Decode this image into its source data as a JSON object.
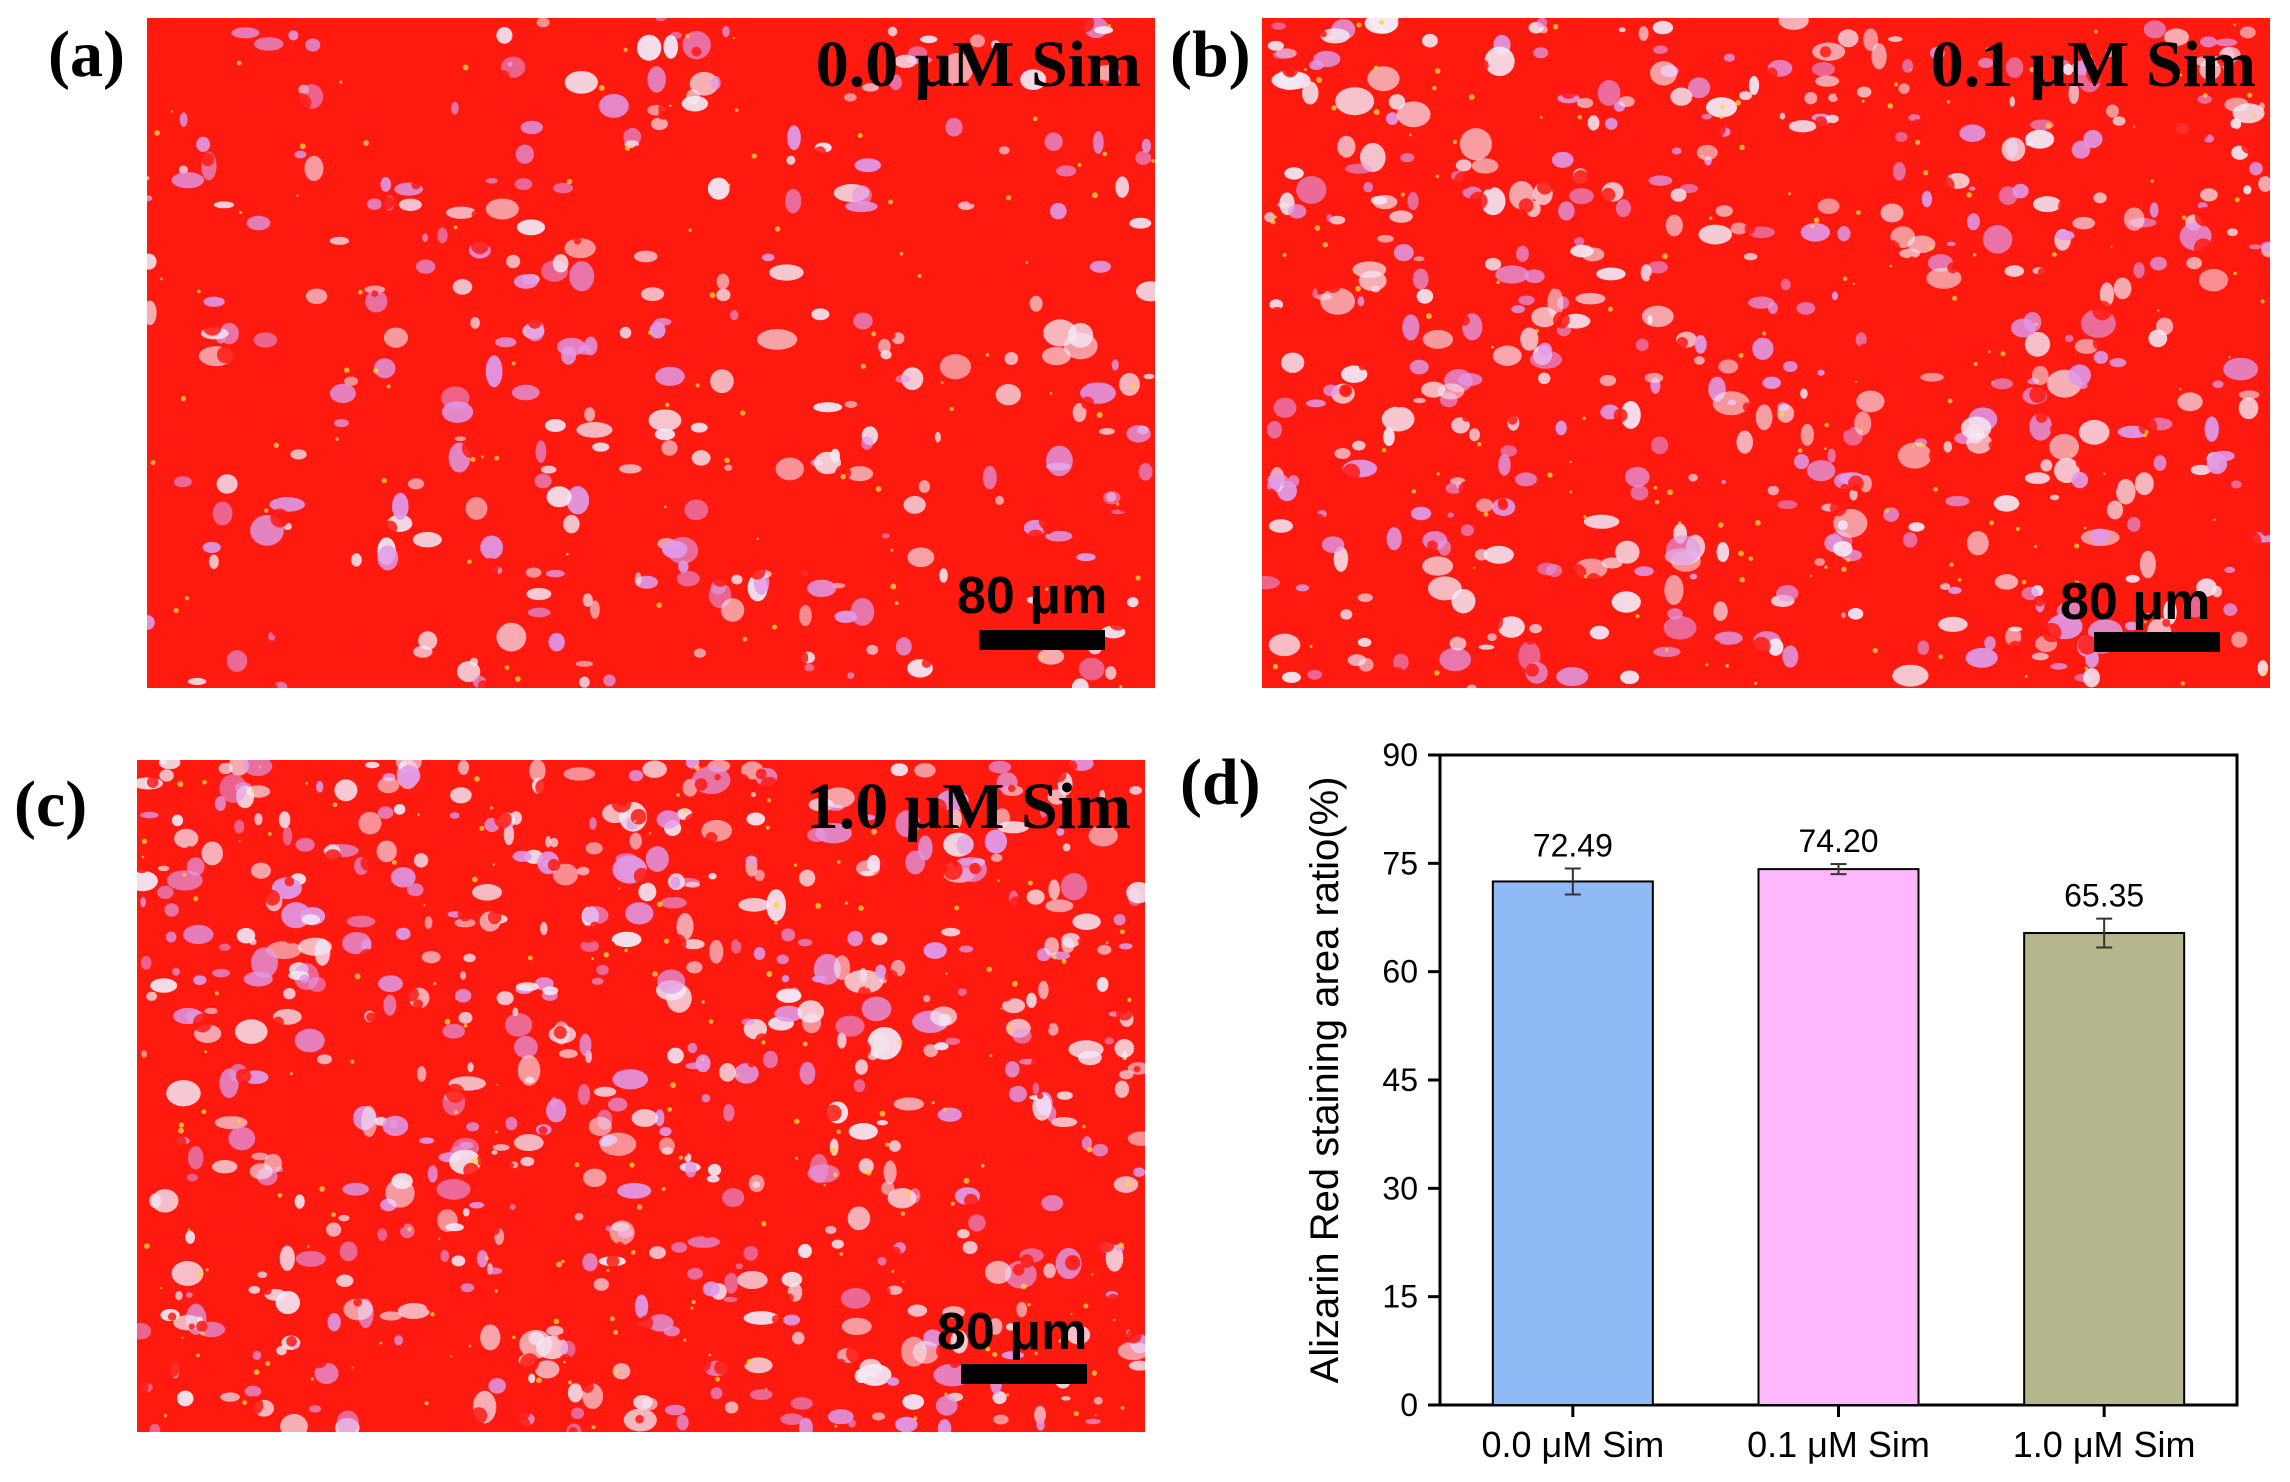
{
  "panels": {
    "a": {
      "label": "(a)",
      "condition": "0.0 μM Sim",
      "scale_text": "80 μm"
    },
    "b": {
      "label": "(b)",
      "condition": "0.1 μM Sim",
      "scale_text": "80 μm"
    },
    "c": {
      "label": "(c)",
      "condition": "1.0 μM Sim",
      "scale_text": "80 μm"
    },
    "d": {
      "label": "(d)"
    }
  },
  "colors": {
    "stain_red": "#ff1a10",
    "cell_pale": "#f4e9f7",
    "cell_pink": "#e09ae8",
    "cell_yellow": "#ffd23a"
  },
  "chart_data": {
    "type": "bar",
    "categories": [
      "0.0 μM Sim",
      "0.1 μM Sim",
      "1.0 μM Sim"
    ],
    "values": [
      72.49,
      74.2,
      65.35
    ],
    "errors": [
      1.8,
      0.7,
      2.0
    ],
    "value_labels": [
      "72.49",
      "74.20",
      "65.35"
    ],
    "colors": [
      "#8fbaf5",
      "#ffb8fb",
      "#b6b68c"
    ],
    "xlabel": "",
    "ylabel": "Alizarin Red staining area ratio(%)",
    "ylim": [
      0,
      90
    ],
    "yticks": [
      0,
      15,
      30,
      45,
      60,
      75,
      90
    ],
    "grid": false,
    "legend": "none"
  }
}
